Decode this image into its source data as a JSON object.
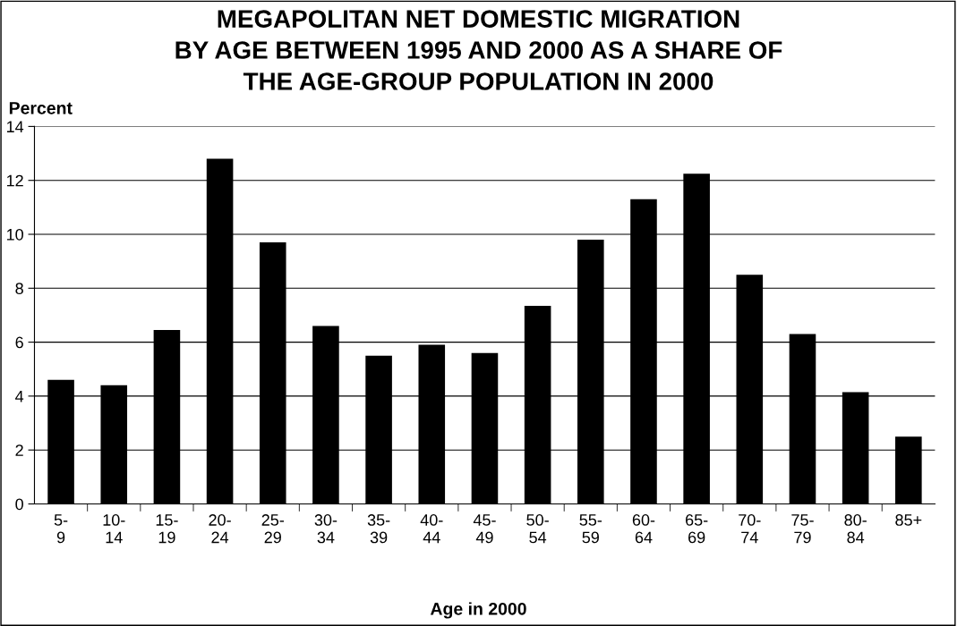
{
  "chart_data": {
    "type": "bar",
    "title": "MEGAPOLITAN NET DOMESTIC MIGRATION\nBY AGE BETWEEN 1995 AND 2000 AS A SHARE OF\nTHE AGE-GROUP POPULATION IN 2000",
    "ylabel": "Percent",
    "xlabel": "Age in 2000",
    "categories": [
      "5-\n9",
      "10-\n14",
      "15-\n19",
      "20-\n24",
      "25-\n29",
      "30-\n34",
      "35-\n39",
      "40-\n44",
      "45-\n49",
      "50-\n54",
      "55-\n59",
      "60-\n64",
      "65-\n69",
      "70-\n74",
      "75-\n79",
      "80-\n84",
      "85+"
    ],
    "values": [
      4.6,
      4.4,
      6.45,
      12.8,
      9.7,
      6.6,
      5.5,
      5.9,
      5.6,
      7.35,
      9.8,
      11.3,
      12.25,
      8.5,
      6.3,
      4.15,
      2.5
    ],
    "color": "#000000",
    "ylim": [
      0,
      14
    ],
    "yticks": [
      0,
      2,
      4,
      6,
      8,
      10,
      12,
      14
    ],
    "grid": "y",
    "legend": false
  }
}
